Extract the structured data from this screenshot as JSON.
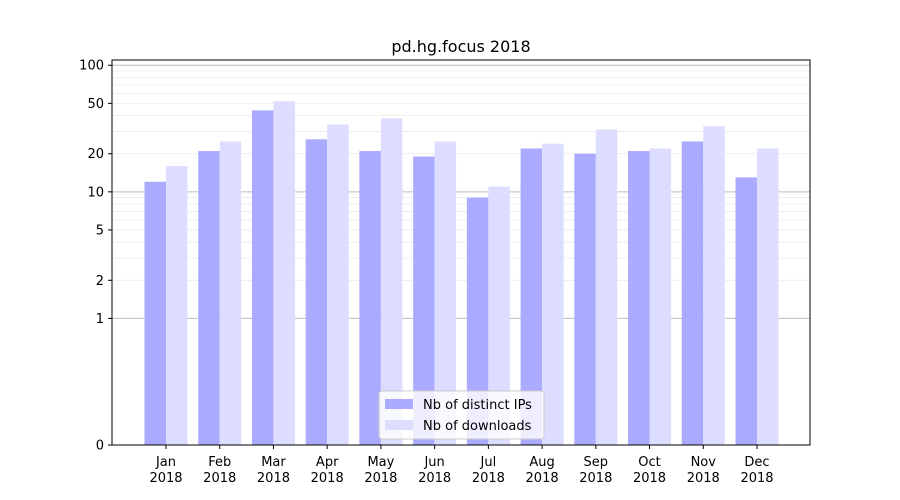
{
  "chart_data": {
    "type": "bar",
    "title": "pd.hg.focus 2018",
    "xlabel": "",
    "ylabel": "",
    "yscale": "symlog",
    "yticks": [
      0,
      1,
      2,
      5,
      10,
      20,
      50,
      100
    ],
    "ylim": [
      0,
      110
    ],
    "categories": [
      {
        "month": "Jan",
        "year": "2018"
      },
      {
        "month": "Feb",
        "year": "2018"
      },
      {
        "month": "Mar",
        "year": "2018"
      },
      {
        "month": "Apr",
        "year": "2018"
      },
      {
        "month": "May",
        "year": "2018"
      },
      {
        "month": "Jun",
        "year": "2018"
      },
      {
        "month": "Jul",
        "year": "2018"
      },
      {
        "month": "Aug",
        "year": "2018"
      },
      {
        "month": "Sep",
        "year": "2018"
      },
      {
        "month": "Oct",
        "year": "2018"
      },
      {
        "month": "Nov",
        "year": "2018"
      },
      {
        "month": "Dec",
        "year": "2018"
      }
    ],
    "series": [
      {
        "name": "Nb of distinct IPs",
        "color": "#aaaaff",
        "values": [
          12,
          21,
          44,
          26,
          21,
          19,
          9,
          22,
          20,
          21,
          25,
          13
        ]
      },
      {
        "name": "Nb of downloads",
        "color": "#ddddff",
        "values": [
          16,
          25,
          52,
          34,
          38,
          25,
          11,
          24,
          31,
          22,
          33,
          22
        ]
      }
    ],
    "legend": "bottom-center",
    "grid": true
  }
}
